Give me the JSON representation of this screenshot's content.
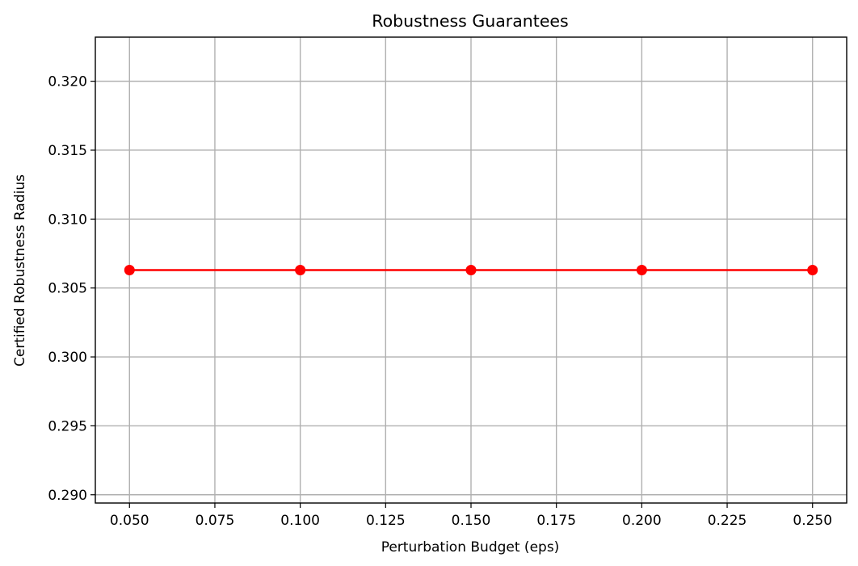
{
  "chart_data": {
    "type": "line",
    "title": "Robustness Guarantees",
    "xlabel": "Perturbation Budget (eps)",
    "ylabel": "Certified Robustness Radius",
    "x": [
      0.05,
      0.1,
      0.15,
      0.2,
      0.25
    ],
    "series": [
      {
        "values": [
          0.3063,
          0.3063,
          0.3063,
          0.3063,
          0.3063
        ],
        "color": "#ff0000",
        "marker": "circle"
      }
    ],
    "xlim": [
      0.04,
      0.26
    ],
    "ylim": [
      0.2894,
      0.3232
    ],
    "xticks": [
      "0.050",
      "0.075",
      "0.100",
      "0.125",
      "0.150",
      "0.175",
      "0.200",
      "0.225",
      "0.250"
    ],
    "xtick_values": [
      0.05,
      0.075,
      0.1,
      0.125,
      0.15,
      0.175,
      0.2,
      0.225,
      0.25
    ],
    "yticks": [
      "0.290",
      "0.295",
      "0.300",
      "0.305",
      "0.310",
      "0.315",
      "0.320"
    ],
    "ytick_values": [
      0.29,
      0.295,
      0.3,
      0.305,
      0.31,
      0.315,
      0.32
    ],
    "grid": true,
    "grid_color": "#b0b0b0",
    "legend": "none"
  }
}
